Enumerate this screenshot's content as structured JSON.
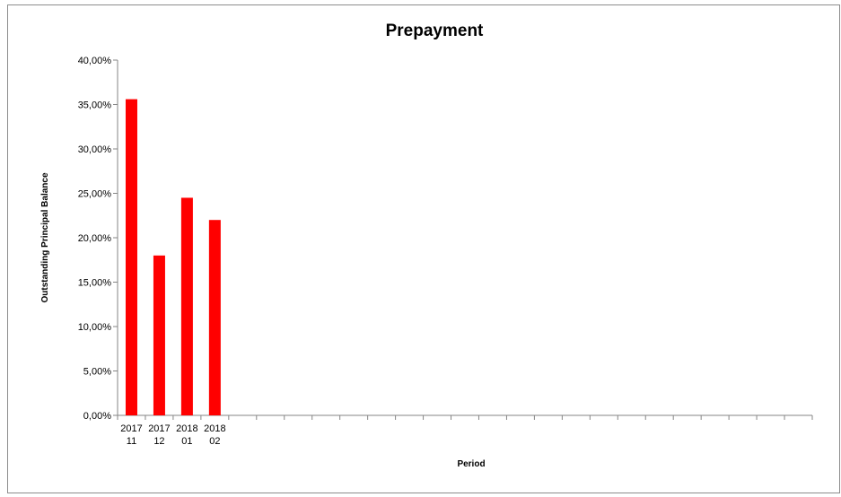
{
  "chart_data": {
    "type": "bar",
    "title": "Prepayment",
    "xlabel": "Period",
    "ylabel": "Outstanding Principal Balance",
    "ylim": [
      0,
      40
    ],
    "y_ticks": [
      "0,00%",
      "5,00%",
      "10,00%",
      "15,00%",
      "20,00%",
      "25,00%",
      "30,00%",
      "35,00%",
      "40,00%"
    ],
    "category_slots": 25,
    "categories": [
      [
        "2017",
        "11"
      ],
      [
        "2017",
        "12"
      ],
      [
        "2018",
        "01"
      ],
      [
        "2018",
        "02"
      ]
    ],
    "values": [
      35.6,
      18.0,
      24.5,
      22.0
    ],
    "bar_color": "#ff0000",
    "grid": false,
    "legend": "none"
  }
}
